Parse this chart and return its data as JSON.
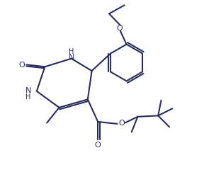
{
  "background_color": "#ffffff",
  "line_color": "#2b2b5e",
  "line_width": 1.5,
  "fig_width": 2.88,
  "fig_height": 2.51,
  "dpi": 100,
  "xlim": [
    0,
    10
  ],
  "ylim": [
    0,
    8.7
  ]
}
